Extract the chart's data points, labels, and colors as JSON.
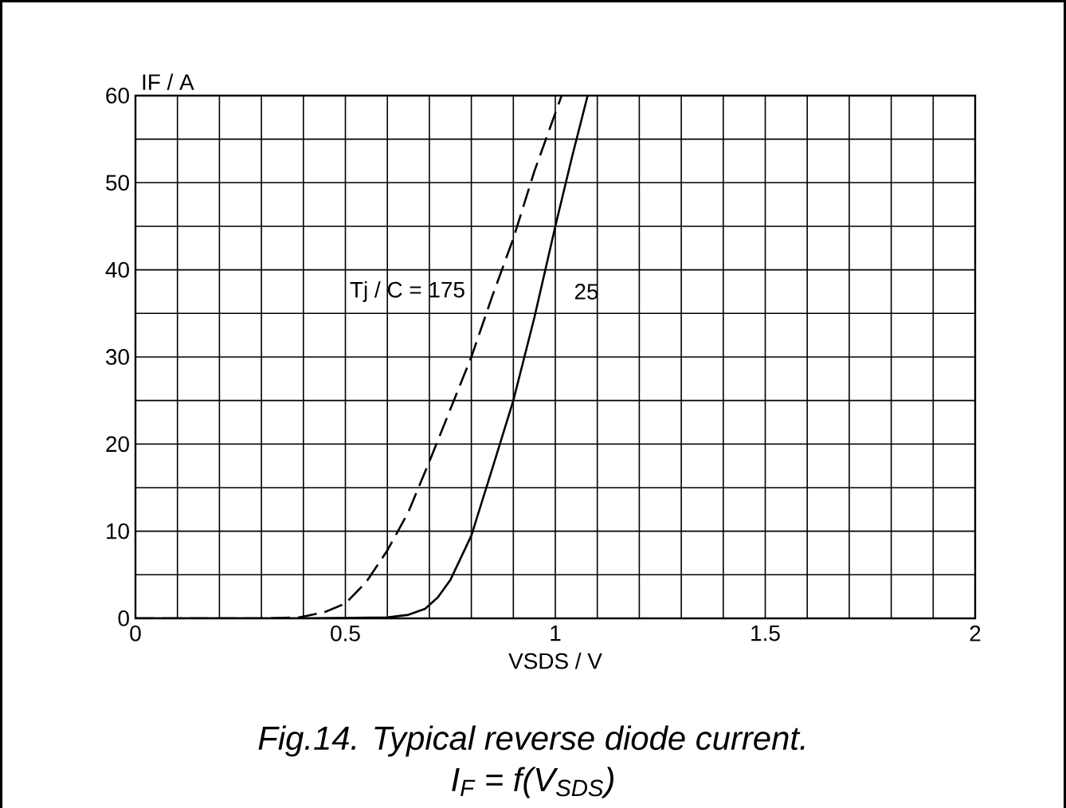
{
  "chart_data": {
    "type": "line",
    "title": "Fig.14.   Typical reverse diode current.",
    "subtitle": "I$_{F}$ = f(V$_{SDS}$)",
    "xlabel": "VSDS / V",
    "ylabel": "IF / A",
    "xlim": [
      0,
      2
    ],
    "xticks": [
      0,
      0.5,
      1,
      1.5,
      2
    ],
    "ylim": [
      0,
      60
    ],
    "yticks": [
      0,
      10,
      20,
      30,
      40,
      50,
      60
    ],
    "grid": true,
    "series": [
      {
        "name": "Tj / C = 175",
        "color": "#000000",
        "line_style": "dashed",
        "x": [
          0,
          0.3,
          0.39,
          0.45,
          0.5,
          0.55,
          0.6,
          0.65,
          0.7,
          0.75,
          0.8,
          0.85,
          0.9,
          0.95,
          1.0,
          1.015
        ],
        "values": [
          0,
          0,
          0.1,
          0.7,
          1.7,
          4.2,
          7.8,
          12.2,
          18,
          24,
          30,
          37,
          43.6,
          51.3,
          58,
          60
        ]
      },
      {
        "name": "25",
        "color": "#000000",
        "line_style": "solid",
        "x": [
          0,
          0.4,
          0.6,
          0.65,
          0.69,
          0.72,
          0.75,
          0.8,
          0.85,
          0.9,
          0.95,
          1.0,
          1.04,
          1.077
        ],
        "values": [
          0,
          0,
          0.1,
          0.4,
          1.1,
          2.4,
          4.4,
          9.5,
          17.2,
          25,
          34.5,
          45,
          53,
          60
        ]
      }
    ]
  }
}
